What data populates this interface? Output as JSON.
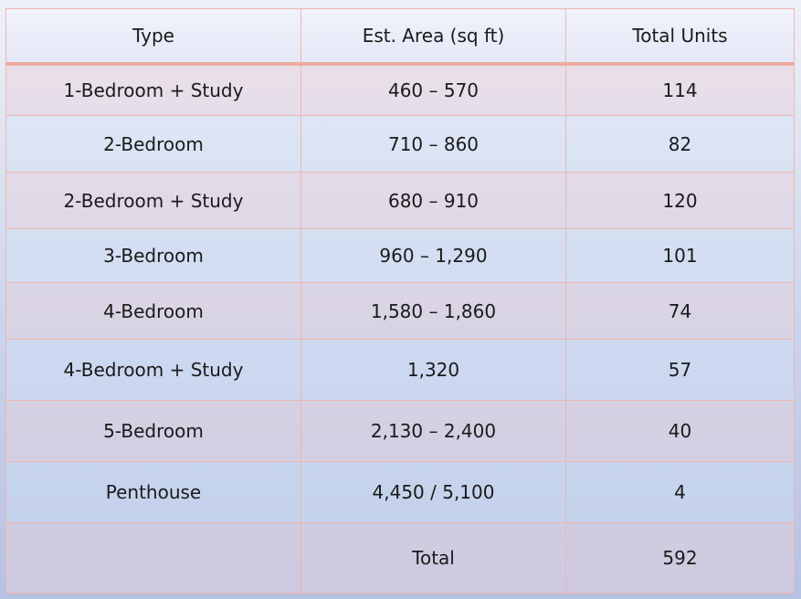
{
  "table": {
    "headers": [
      "Type",
      "Est. Area (sq ft)",
      "Total Units"
    ],
    "rows": [
      [
        "1-Bedroom + Study",
        "460 – 570",
        "114"
      ],
      [
        "2-Bedroom",
        "710 – 860",
        "82"
      ],
      [
        "2-Bedroom + Study",
        "680 – 910",
        "120"
      ],
      [
        "3-Bedroom",
        "960 – 1,290",
        "101"
      ],
      [
        "4-Bedroom",
        "1,580 – 1,860",
        "74"
      ],
      [
        "4-Bedroom + Study",
        "1,320",
        "57"
      ],
      [
        "5-Bedroom",
        "2,130 – 2,400",
        "40"
      ],
      [
        "Penthouse",
        "4,450 / 5,100",
        "4"
      ]
    ],
    "total": [
      "",
      "Total",
      "592"
    ]
  },
  "colors": {
    "border": "#eeb6ae",
    "background_top": "#eef0f8",
    "background_bottom": "#b6c2e2"
  }
}
